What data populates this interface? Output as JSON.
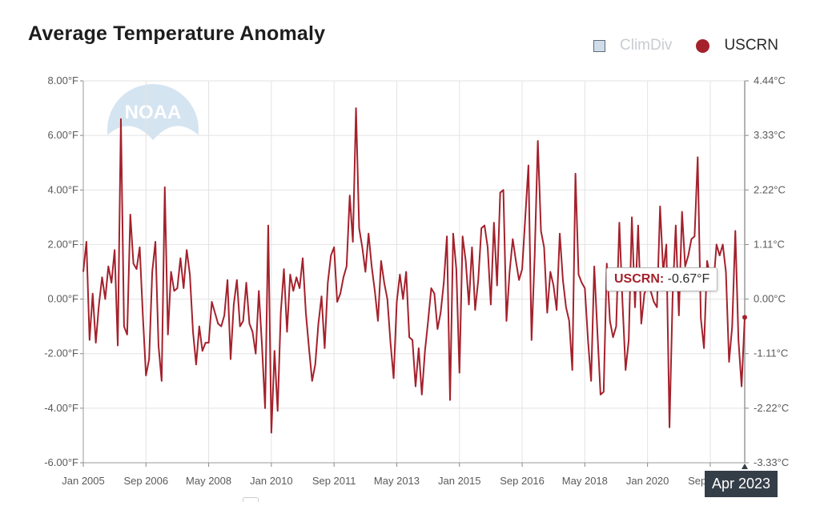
{
  "header": {
    "title": "Average Temperature Anomaly"
  },
  "legend": [
    {
      "label": "ClimDiv",
      "visible": false,
      "marker": "square",
      "color": "#cfdde9"
    },
    {
      "label": "USCRN",
      "visible": true,
      "marker": "circle",
      "color": "#a4212c"
    }
  ],
  "tooltip": {
    "series": "USCRN:",
    "value": "-0.67°F"
  },
  "x_flag": "Apr 2023",
  "logo_text": "NOAA",
  "chart_data": {
    "type": "line",
    "title": "Average Temperature Anomaly",
    "xlabel": "",
    "ylabel": "",
    "x_start": "Jan 2005",
    "x_end": "Apr 2023",
    "ylim": [
      -6,
      8
    ],
    "y_ticks_left": [
      "8.00°F",
      "6.00°F",
      "4.00°F",
      "2.00°F",
      "0.00°F",
      "-2.00°F",
      "-4.00°F",
      "-6.00°F"
    ],
    "y_ticks_right": [
      "4.44°C",
      "3.33°C",
      "2.22°C",
      "1.11°C",
      "0.00°C",
      "-1.11°C",
      "-2.22°C",
      "-3.33°C"
    ],
    "x_ticks": [
      "Jan 2005",
      "Sep 2006",
      "May 2008",
      "Jan 2010",
      "Sep 2011",
      "May 2013",
      "Jan 2015",
      "Sep 2016",
      "May 2018",
      "Jan 2020",
      "Sep 2021"
    ],
    "x_tick_months": [
      0,
      20,
      40,
      60,
      80,
      100,
      120,
      140,
      160,
      180,
      200
    ],
    "grid": true,
    "legend_position": "top-right",
    "series": [
      {
        "name": "USCRN",
        "color": "#a4212c",
        "values": [
          1.0,
          2.1,
          -1.5,
          0.2,
          -1.6,
          -0.2,
          0.8,
          0.0,
          1.2,
          0.6,
          1.8,
          -1.7,
          6.6,
          -1.0,
          -1.3,
          3.1,
          1.3,
          1.1,
          1.9,
          -0.6,
          -2.8,
          -2.2,
          1.0,
          2.1,
          -1.7,
          -3.0,
          4.1,
          -1.3,
          1.0,
          0.3,
          0.4,
          1.5,
          0.4,
          1.8,
          0.9,
          -1.2,
          -2.4,
          -1.0,
          -1.9,
          -1.6,
          -1.6,
          -0.1,
          -0.5,
          -0.9,
          -1.0,
          -0.6,
          0.7,
          -2.2,
          -0.2,
          0.7,
          -1.0,
          -0.8,
          0.6,
          -0.9,
          -1.2,
          -2.0,
          0.3,
          -1.7,
          -4.0,
          2.7,
          -4.9,
          -1.9,
          -4.1,
          -0.5,
          1.1,
          -1.2,
          0.9,
          0.3,
          0.8,
          0.4,
          1.5,
          -0.5,
          -1.8,
          -3.0,
          -2.4,
          -0.9,
          0.1,
          -1.8,
          0.6,
          1.6,
          1.9,
          -0.1,
          0.2,
          0.8,
          1.2,
          3.8,
          2.1,
          7.0,
          2.6,
          1.9,
          1.0,
          2.4,
          1.2,
          0.3,
          -0.8,
          1.4,
          0.6,
          0.0,
          -1.6,
          -2.9,
          -0.1,
          0.9,
          0.0,
          1.0,
          -1.4,
          -1.5,
          -3.2,
          -1.8,
          -3.5,
          -1.9,
          -0.8,
          0.4,
          0.2,
          -1.1,
          -0.5,
          0.6,
          2.3,
          -3.7,
          2.4,
          1.1,
          -2.7,
          2.3,
          1.4,
          -0.2,
          1.9,
          -0.4,
          0.7,
          2.6,
          2.7,
          1.9,
          -0.2,
          2.8,
          0.5,
          3.9,
          4.0,
          -0.8,
          1.0,
          2.2,
          1.4,
          0.7,
          1.1,
          3.0,
          4.9,
          -1.5,
          1.6,
          5.8,
          2.5,
          1.9,
          -0.5,
          1.0,
          0.5,
          -0.4,
          2.4,
          0.7,
          -0.3,
          -0.8,
          -2.6,
          4.6,
          0.9,
          0.6,
          0.4,
          -1.5,
          -3.0,
          1.2,
          -1.2,
          -3.5,
          -3.4,
          1.3,
          -0.8,
          -1.4,
          -1.0,
          2.8,
          -0.1,
          -2.6,
          -1.5,
          3.0,
          -0.3,
          2.7,
          -0.9,
          0.2,
          0.5,
          0.3,
          -0.1,
          -0.3,
          3.4,
          1.0,
          2.0,
          -4.7,
          0.1,
          2.7,
          -0.6,
          3.2,
          1.2,
          1.6,
          2.2,
          2.3,
          5.2,
          -0.7,
          -1.8,
          1.4,
          0.8,
          0.5,
          2.0,
          1.6,
          2.0,
          1.0,
          -2.3,
          -1.0,
          2.5,
          -1.5,
          -3.2,
          -0.67
        ]
      }
    ]
  }
}
